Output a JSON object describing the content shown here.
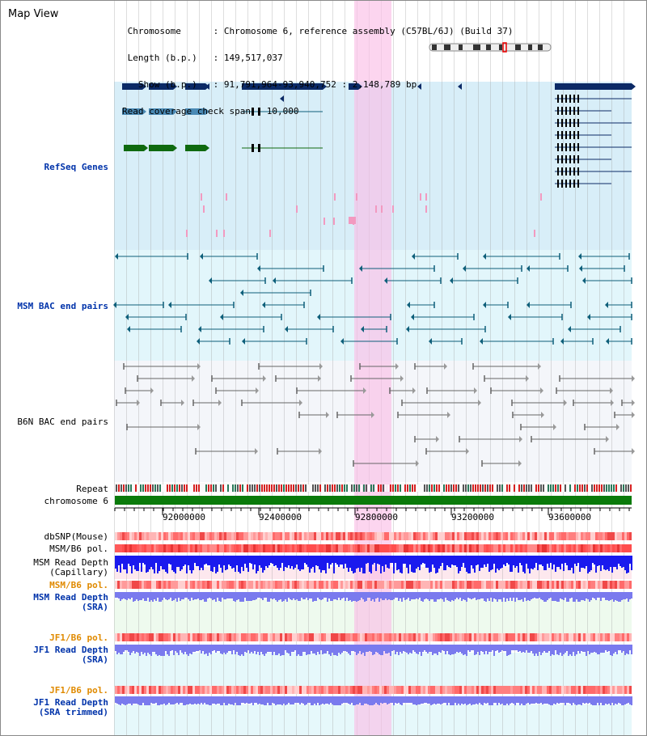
{
  "header": {
    "title": "Map View",
    "info_lines": [
      " Chromosome      : Chromosome 6, reference assembly (C57BL/6J) (Build 37)",
      " Length (b.p.)   : 149,517,037",
      "   Show (b.p.)   : 91,791,964-93,940,752 : 2,148,789 bp",
      "Read coverage check span : 10,000"
    ]
  },
  "tracks": {
    "refseq_label": "RefSeq Genes",
    "msm_bac_label": "MSM BAC end pairs",
    "b6n_bac_label": "B6N BAC end pairs",
    "repeat_label": "Repeat",
    "chromosome_label": "chromosome 6",
    "dbsnp_label": "dbSNP(Mouse)",
    "msm_b6_pol_label": "MSM/B6 pol.",
    "msm_read_depth_cap_label_1": "MSM Read Depth",
    "msm_read_depth_cap_label_2": "(Capillary)",
    "msm_b6_pol_label_2": "MSM/B6 pol.",
    "msm_read_depth_sra_label_1": "MSM Read Depth",
    "msm_read_depth_sra_label_2": "(SRA)",
    "jf1_b6_pol_label": "JF1/B6 pol.",
    "jf1_read_depth_label_1": "JF1 Read Depth",
    "jf1_read_depth_label_2": "(SRA)",
    "jf1_b6_pol_label_2": "JF1/B6 pol.",
    "jf1_trim_label_1": "JF1 Read Depth",
    "jf1_trim_label_2": "(SRA trimmed)"
  },
  "ruler": {
    "ticks": [
      "92000000",
      "92400000",
      "92800000",
      "93200000",
      "93600000"
    ]
  },
  "colors": {
    "refseq_dark": "#0b2a66",
    "refseq_mid": "#4a8ab5",
    "refseq_green": "#0f6a0f",
    "msm_line": "#0e5f7a",
    "b6n_line": "#666666",
    "chromosome": "#0a7a0a",
    "highlight": "#f8c8ec",
    "depth_blue": "#1a1aee",
    "depth_light": "#7a7aee"
  }
}
